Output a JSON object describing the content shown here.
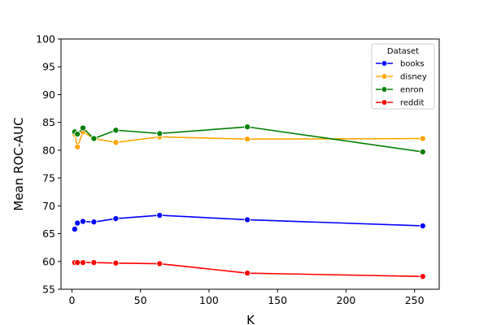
{
  "chart_data": {
    "type": "line",
    "xlabel": "K",
    "ylabel": "Mean ROC-AUC",
    "xlim": [
      -8,
      268
    ],
    "ylim": [
      55,
      100
    ],
    "x_ticks": [
      0,
      50,
      100,
      150,
      200,
      250
    ],
    "y_ticks": [
      55,
      60,
      65,
      70,
      75,
      80,
      85,
      90,
      95,
      100
    ],
    "grid": false,
    "legend": {
      "title": "Dataset",
      "placement": "top-right"
    },
    "series": [
      {
        "name": "books",
        "color": "#0000ff",
        "x": [
          2,
          4,
          8,
          16,
          32,
          64,
          128,
          256
        ],
        "y": [
          65.8,
          66.9,
          67.2,
          67.1,
          67.7,
          68.3,
          67.5,
          66.4
        ]
      },
      {
        "name": "disney",
        "color": "#ffa500",
        "x": [
          2,
          4,
          8,
          16,
          32,
          64,
          128,
          256
        ],
        "y": [
          82.9,
          80.6,
          83.3,
          82.1,
          81.4,
          82.4,
          82.0,
          82.1
        ]
      },
      {
        "name": "enron",
        "color": "#008000",
        "x": [
          2,
          4,
          8,
          16,
          32,
          64,
          128,
          256
        ],
        "y": [
          83.3,
          82.9,
          84.0,
          82.1,
          83.6,
          83.0,
          84.2,
          79.7
        ]
      },
      {
        "name": "reddit",
        "color": "#ff0000",
        "x": [
          2,
          4,
          8,
          16,
          32,
          64,
          128,
          256
        ],
        "y": [
          59.8,
          59.8,
          59.8,
          59.8,
          59.7,
          59.6,
          57.9,
          57.3
        ]
      }
    ]
  }
}
